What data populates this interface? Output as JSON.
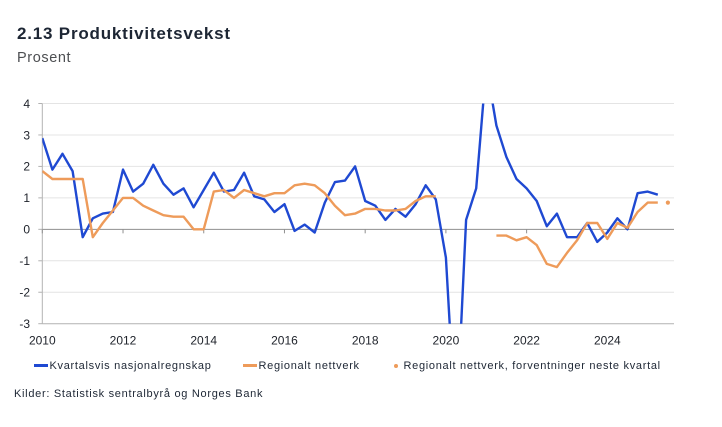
{
  "header": {
    "title": "2.13 Produktivitetsvekst",
    "subtitle": "Prosent"
  },
  "chart_data": {
    "type": "line",
    "title": "2.13 Produktivitetsvekst",
    "ylabel": "Prosent",
    "ylim": [
      -3,
      4
    ],
    "y_ticks": [
      4,
      3,
      2,
      1,
      0,
      -1,
      -2,
      -3
    ],
    "x_tick_labels": [
      "2010",
      "2012",
      "2014",
      "2016",
      "2018",
      "2020",
      "2022",
      "2024"
    ],
    "x_start": "2010Q1",
    "x_frequency": "quarterly",
    "grid": true,
    "legend_position": "bottom",
    "series": [
      {
        "name": "Kvartalsvis nasjonalregnskap",
        "color": "#1f49d2",
        "values": [
          2.9,
          1.9,
          2.4,
          1.85,
          -0.25,
          0.35,
          0.5,
          0.55,
          1.9,
          1.2,
          1.45,
          2.05,
          1.45,
          1.1,
          1.3,
          0.7,
          1.25,
          1.8,
          1.2,
          1.25,
          1.8,
          1.05,
          0.95,
          0.55,
          0.8,
          -0.05,
          0.15,
          -0.1,
          0.85,
          1.5,
          1.55,
          2.0,
          0.9,
          0.75,
          0.3,
          0.65,
          0.4,
          0.8,
          1.4,
          0.95,
          -0.9,
          -6.5,
          0.3,
          1.3,
          5.2,
          3.3,
          2.3,
          1.6,
          1.3,
          0.9,
          0.1,
          0.5,
          -0.25,
          -0.25,
          0.2,
          -0.4,
          -0.1,
          0.35,
          0.0,
          1.15,
          1.2,
          1.1
        ]
      },
      {
        "name": "Regionalt nettverk",
        "color": "#ee9b5a",
        "values": [
          1.85,
          1.6,
          1.6,
          1.6,
          1.6,
          -0.25,
          0.2,
          0.6,
          1.0,
          1.0,
          0.75,
          0.6,
          0.45,
          0.4,
          0.4,
          0.0,
          0.0,
          1.2,
          1.25,
          1.0,
          1.25,
          1.15,
          1.05,
          1.15,
          1.15,
          1.4,
          1.45,
          1.4,
          1.15,
          0.75,
          0.45,
          0.5,
          0.65,
          0.65,
          0.6,
          0.6,
          0.65,
          0.9,
          1.05,
          1.05,
          null,
          null,
          null,
          null,
          null,
          -0.2,
          -0.2,
          -0.35,
          -0.25,
          -0.5,
          -1.1,
          -1.2,
          -0.75,
          -0.35,
          0.2,
          0.2,
          -0.3,
          0.2,
          0.05,
          0.55,
          0.85,
          0.85
        ]
      }
    ],
    "forecast_point": {
      "name": "Regionalt nettverk, forventninger neste kvartal",
      "color": "#ee9b5a",
      "quarter": "2025Q3",
      "value": 0.85
    }
  },
  "legend": {
    "items": [
      {
        "label": "Kvartalsvis nasjonalregnskap"
      },
      {
        "label": "Regionalt nettverk"
      },
      {
        "label": "Regionalt nettverk, forventninger neste kvartal"
      }
    ]
  },
  "footer": {
    "source": "Kilder: Statistisk sentralbyrå og Norges Bank"
  }
}
